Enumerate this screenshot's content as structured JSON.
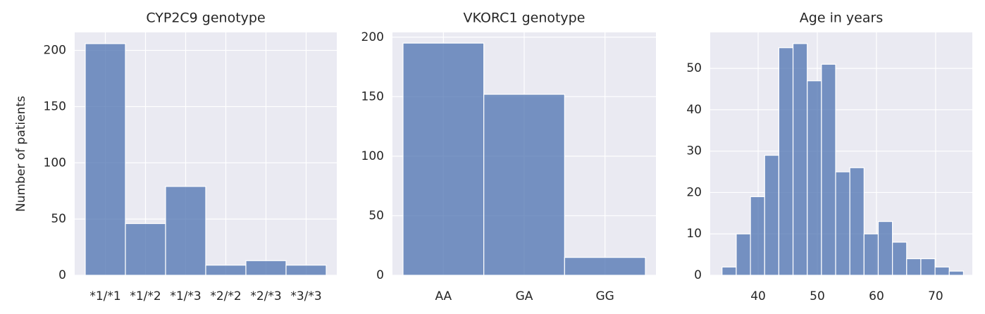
{
  "chart_data": [
    {
      "type": "bar",
      "title": "CYP2C9 genotype",
      "ylabel": "Number of patients",
      "categories": [
        "*1/*1",
        "*1/*2",
        "*1/*3",
        "*2/*2",
        "*2/*3",
        "*3/*3"
      ],
      "values": [
        206,
        46,
        79,
        9,
        13,
        9
      ],
      "color": "#4c72b0",
      "ylim": [
        0,
        216
      ],
      "yticks": [
        0,
        50,
        100,
        150,
        200
      ],
      "grid": true
    },
    {
      "type": "bar",
      "title": "VKORC1 genotype",
      "categories": [
        "AA",
        "GA",
        "GG"
      ],
      "values": [
        195,
        152,
        15
      ],
      "color": "#4c72b0",
      "ylim": [
        0,
        204
      ],
      "yticks": [
        0,
        50,
        100,
        150,
        200
      ],
      "grid": true
    },
    {
      "type": "histogram",
      "title": "Age in years",
      "bins": [
        33.9,
        36.3,
        38.7,
        41.1,
        43.5,
        45.9,
        48.3,
        50.7,
        53.1,
        55.5,
        57.9,
        60.3,
        62.7,
        65.1,
        67.5,
        69.9,
        72.3,
        74.7
      ],
      "values": [
        2,
        10,
        19,
        29,
        55,
        56,
        47,
        51,
        25,
        26,
        10,
        13,
        8,
        4,
        4,
        2,
        1
      ],
      "color": "#4c72b0",
      "xlim": [
        31.9,
        76.2
      ],
      "xticks": [
        40,
        50,
        60,
        70
      ],
      "ylim": [
        0,
        58.7
      ],
      "yticks": [
        0,
        10,
        20,
        30,
        40,
        50
      ],
      "grid": true
    }
  ]
}
